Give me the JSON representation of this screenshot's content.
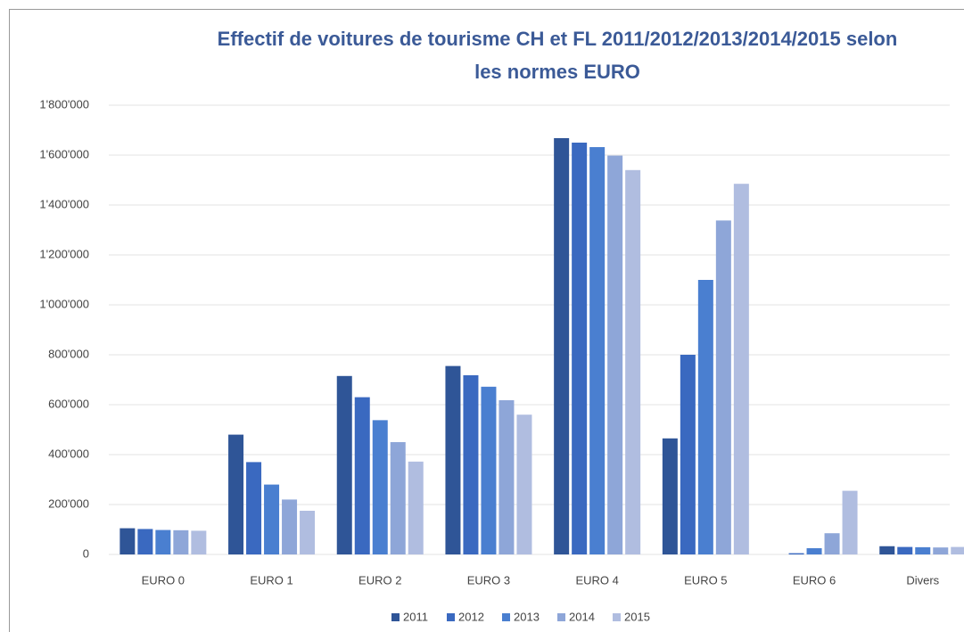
{
  "chart_data": {
    "type": "bar",
    "title": [
      "Effectif de voitures de tourisme CH et FL 2011/2012/2013/2014/2015 selon",
      "les normes EURO"
    ],
    "categories": [
      "EURO 0",
      "EURO 1",
      "EURO 2",
      "EURO 3",
      "EURO 4",
      "EURO 5",
      "EURO 6",
      "Divers"
    ],
    "series": [
      {
        "name": "2011",
        "color": "#2f5597",
        "values": [
          105000,
          480000,
          715000,
          755000,
          1668000,
          465000,
          0,
          33000
        ]
      },
      {
        "name": "2012",
        "color": "#3a69c0",
        "values": [
          102000,
          370000,
          630000,
          718000,
          1650000,
          800000,
          5000,
          30000
        ]
      },
      {
        "name": "2013",
        "color": "#4a7fd0",
        "values": [
          98000,
          280000,
          538000,
          672000,
          1632000,
          1100000,
          25000,
          29000
        ]
      },
      {
        "name": "2014",
        "color": "#8ea6d8",
        "values": [
          97000,
          220000,
          450000,
          618000,
          1598000,
          1338000,
          85000,
          28000
        ]
      },
      {
        "name": "2015",
        "color": "#b0bde0",
        "values": [
          95000,
          175000,
          372000,
          560000,
          1540000,
          1485000,
          255000,
          30000
        ]
      }
    ],
    "ylim": [
      0,
      1800000
    ],
    "yticks": [
      0,
      {
        "value": 200000,
        "label": "200'000"
      },
      {
        "value": 400000,
        "label": "400'000"
      },
      {
        "value": 600000,
        "label": "600'000"
      },
      {
        "value": 800000,
        "label": "800'000"
      },
      {
        "value": 1000000,
        "label": "1'000'000"
      },
      {
        "value": 1200000,
        "label": "1'200'000"
      },
      {
        "value": 1400000,
        "label": "1'400'000"
      },
      {
        "value": 1600000,
        "label": "1'600'000"
      },
      {
        "value": 1800000,
        "label": "1'800'000"
      }
    ],
    "grid": true,
    "legend": "bottom"
  }
}
